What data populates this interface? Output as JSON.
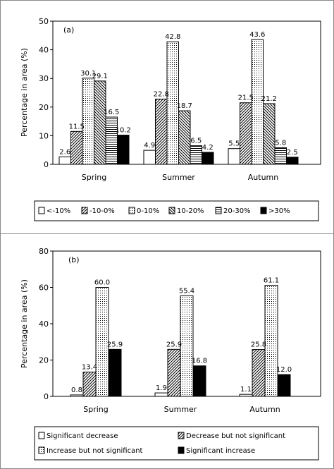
{
  "chart_data": [
    {
      "type": "bar",
      "panel_label": "(a)",
      "ylabel": "Percentage in area (%)",
      "ylim": [
        0,
        50
      ],
      "yticks": [
        0,
        10,
        20,
        30,
        40,
        50
      ],
      "categories": [
        "Spring",
        "Summer",
        "Autumn"
      ],
      "series": [
        {
          "name": "<-10%",
          "pattern": "white",
          "values": [
            2.6,
            4.9,
            5.5
          ]
        },
        {
          "name": "-10-0%",
          "pattern": "diag-right",
          "values": [
            11.5,
            22.8,
            21.5
          ]
        },
        {
          "name": "0-10%",
          "pattern": "dots",
          "values": [
            30.1,
            42.8,
            43.6
          ]
        },
        {
          "name": "10-20%",
          "pattern": "diag-left",
          "values": [
            29.1,
            18.7,
            21.2
          ]
        },
        {
          "name": "20-30%",
          "pattern": "hlines",
          "values": [
            16.5,
            6.5,
            5.8
          ]
        },
        {
          "name": ">30%",
          "pattern": "black",
          "values": [
            10.2,
            4.2,
            2.5
          ]
        }
      ],
      "value_labels": [
        [
          "2.6",
          "4.9",
          "5.5"
        ],
        [
          "11.5",
          "22.8",
          "21.5"
        ],
        [
          "30.1",
          "42.8",
          "43.6"
        ],
        [
          "29.1",
          "18.7",
          "21.2"
        ],
        [
          "16.5",
          "6.5",
          "5.8"
        ],
        [
          "10.2",
          "4.2",
          "2.5"
        ]
      ],
      "legend_position": "bottom"
    },
    {
      "type": "bar",
      "panel_label": "(b)",
      "ylabel": "Percentage in area (%)",
      "ylim": [
        0,
        80
      ],
      "yticks": [
        0,
        20,
        40,
        60,
        80
      ],
      "categories": [
        "Spring",
        "Summer",
        "Autumn"
      ],
      "series": [
        {
          "name": "Significant decrease",
          "pattern": "white",
          "values": [
            0.8,
            1.9,
            1.1
          ]
        },
        {
          "name": "Decrease but not significant",
          "pattern": "diag-right",
          "values": [
            13.4,
            25.9,
            25.8
          ]
        },
        {
          "name": "Increase but not significant",
          "pattern": "dots",
          "values": [
            60.0,
            55.4,
            61.1
          ]
        },
        {
          "name": "Significant increase",
          "pattern": "black",
          "values": [
            25.9,
            16.8,
            12.0
          ]
        }
      ],
      "value_labels": [
        [
          "0.8",
          "1.9",
          "1.1"
        ],
        [
          "13.4",
          "25.9",
          "25.8"
        ],
        [
          "60.0",
          "55.4",
          "61.1"
        ],
        [
          "25.9",
          "16.8",
          "12.0"
        ]
      ],
      "legend_position": "bottom"
    }
  ]
}
